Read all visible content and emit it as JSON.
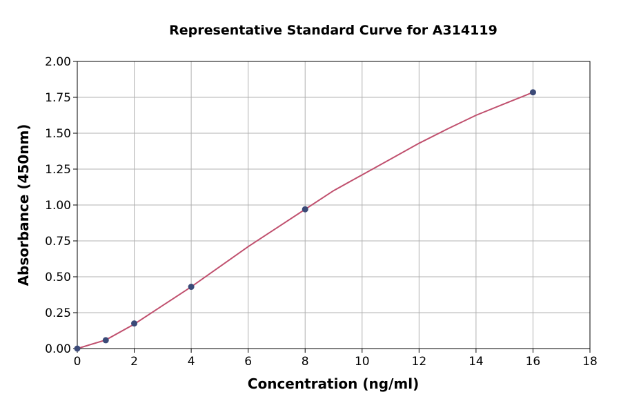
{
  "chart_data": {
    "type": "scatter",
    "title": "Representative Standard Curve for A314119",
    "x_label": "Concentration (ng/ml)",
    "y_label": "Absorbance (450nm)",
    "series": [
      {
        "type": "scatter",
        "color": "#3b4a78",
        "x": [
          0,
          1,
          2,
          4,
          8,
          16
        ],
        "values": [
          0.0,
          0.058,
          0.175,
          0.43,
          0.97,
          1.785
        ]
      },
      {
        "type": "line",
        "color": "#c0506e",
        "x": [
          0,
          1,
          2,
          3,
          4,
          5,
          6,
          7,
          8,
          9,
          10,
          11,
          12,
          13,
          14,
          15,
          16
        ],
        "values": [
          0.0,
          0.06,
          0.17,
          0.3,
          0.43,
          0.57,
          0.71,
          0.84,
          0.97,
          1.1,
          1.21,
          1.32,
          1.43,
          1.53,
          1.625,
          1.705,
          1.785
        ]
      }
    ],
    "xlim": [
      0,
      18
    ],
    "xticks": [
      0,
      2,
      4,
      6,
      8,
      10,
      12,
      14,
      16,
      18
    ],
    "ylim": [
      0,
      2
    ],
    "yticks": [
      {
        "value": 0,
        "label": "0.00"
      },
      {
        "value": 0.25,
        "label": "0.25"
      },
      {
        "value": 0.5,
        "label": "0.50"
      },
      {
        "value": 0.75,
        "label": "0.75"
      },
      {
        "value": 1,
        "label": "1.00"
      },
      {
        "value": 1.25,
        "label": "1.25"
      },
      {
        "value": 1.5,
        "label": "1.50"
      },
      {
        "value": 1.75,
        "label": "1.75"
      },
      {
        "value": 2,
        "label": "2.00"
      }
    ],
    "grid": true
  }
}
